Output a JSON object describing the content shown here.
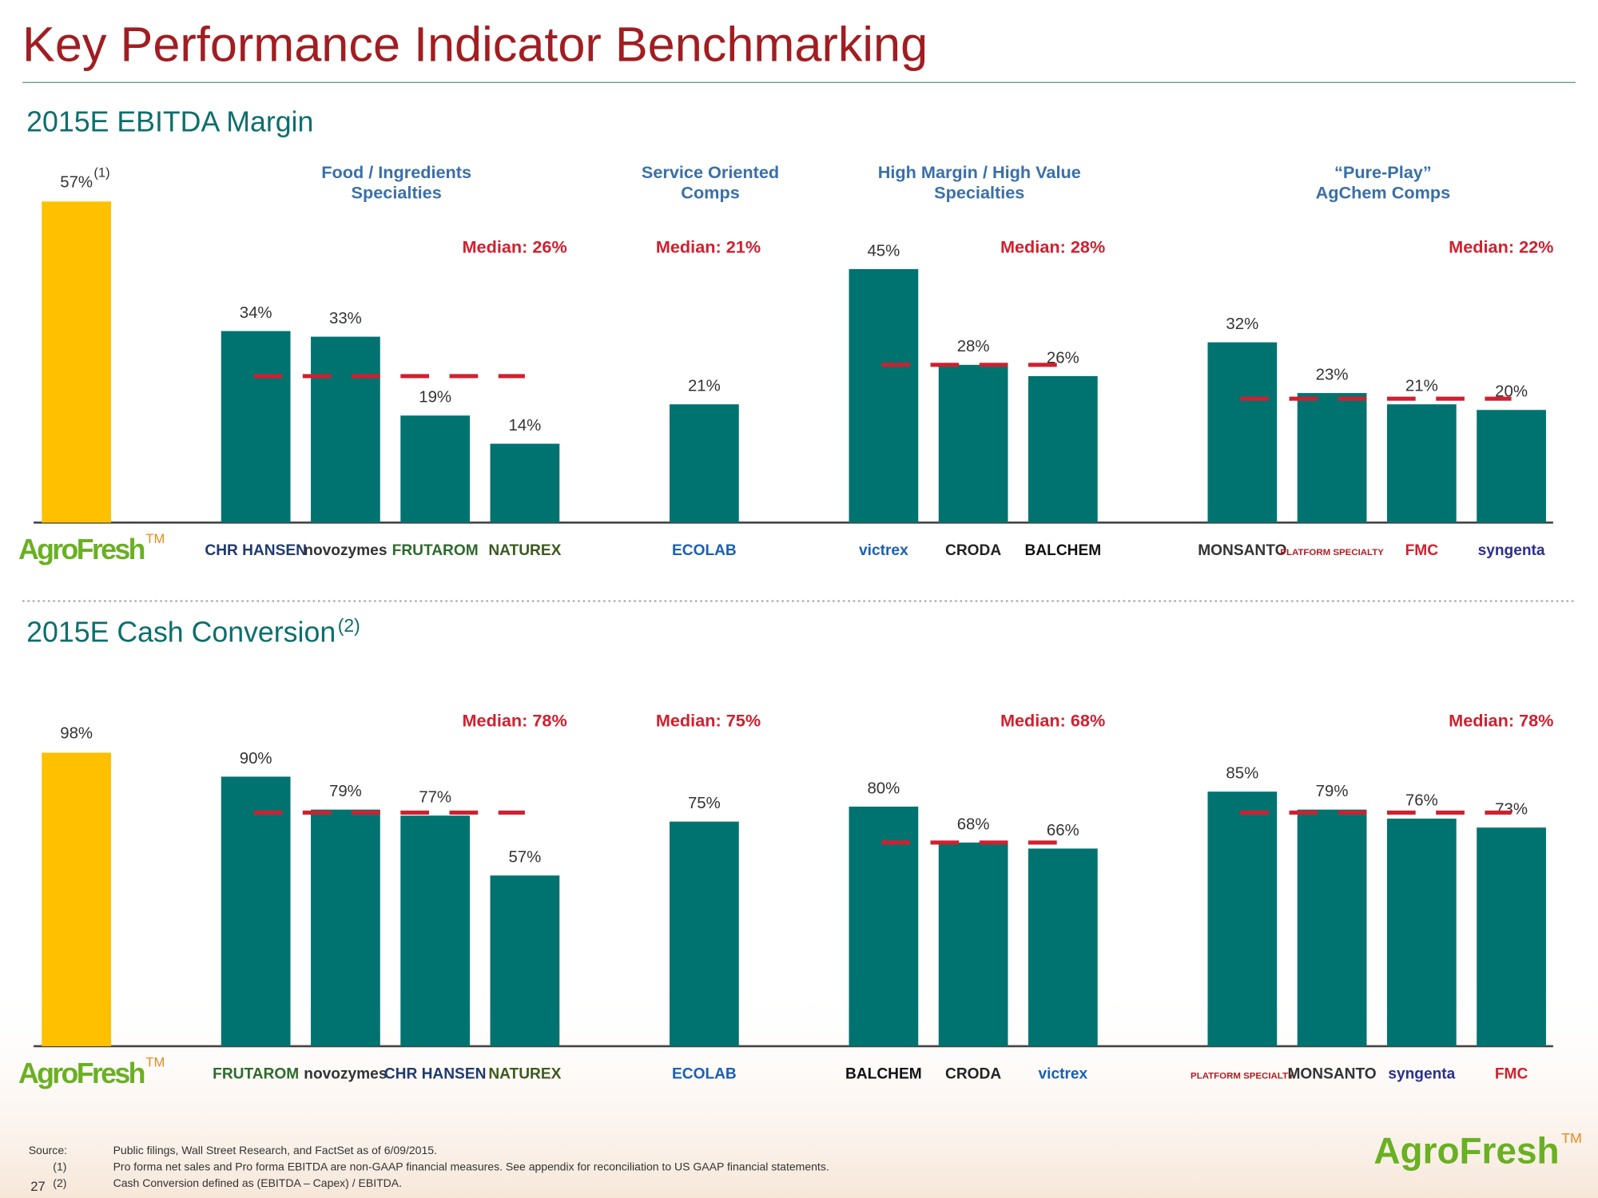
{
  "header": {
    "title": "Key Performance Indicator Benchmarking"
  },
  "chart_data": [
    {
      "type": "bar",
      "title": "2015E EBITDA Margin",
      "color": "#007370",
      "median_color": "#d0202f",
      "subject": {
        "category": "AgroFresh",
        "category_note": "TM",
        "value": 57,
        "value_label": "57%",
        "value_note": "(1)",
        "color": "#ffc000"
      },
      "groups": [
        {
          "title": [
            "Food / Ingredients",
            "Specialties"
          ],
          "categories": [
            "CHR HANSEN",
            "novozymes",
            "FRUTAROM",
            "NATUREX"
          ],
          "category_colors": [
            "#1f3a6e",
            "#333333",
            "#2d6b2d",
            "#3c5a1e"
          ],
          "values": [
            34,
            33,
            19,
            14
          ],
          "value_labels": [
            "34%",
            "33%",
            "19%",
            "14%"
          ],
          "median": 26,
          "median_label": "Median: 26%"
        },
        {
          "title": [
            "Service Oriented",
            "Comps"
          ],
          "categories": [
            "ECOLAB"
          ],
          "category_colors": [
            "#1a5fb4"
          ],
          "values": [
            21
          ],
          "value_labels": [
            "21%"
          ],
          "median": 21,
          "median_label": "Median: 21%"
        },
        {
          "title": [
            "High Margin / High Value",
            "Specialties"
          ],
          "categories": [
            "victrex",
            "CRODA",
            "BALCHEM"
          ],
          "category_colors": [
            "#1a5fb4",
            "#222222",
            "#111111"
          ],
          "values": [
            45,
            28,
            26
          ],
          "value_labels": [
            "45%",
            "28%",
            "26%"
          ],
          "median": 28,
          "median_label": "Median: 28%"
        },
        {
          "title": [
            "“Pure-Play”",
            "AgChem Comps"
          ],
          "categories": [
            "MONSANTO",
            "PLATFORM SPECIALTY",
            "FMC",
            "syngenta"
          ],
          "category_colors": [
            "#333333",
            "#b01c22",
            "#d0202f",
            "#2b2f8f"
          ],
          "values": [
            32,
            23,
            21,
            20
          ],
          "value_labels": [
            "32%",
            "23%",
            "21%",
            "20%"
          ],
          "median": 22,
          "median_label": "Median: 22%"
        }
      ]
    },
    {
      "type": "bar",
      "title": "2015E Cash Conversion",
      "title_note": "(2)",
      "color": "#007370",
      "median_color": "#d0202f",
      "subject": {
        "category": "AgroFresh",
        "category_note": "TM",
        "value": 98,
        "value_label": "98%",
        "color": "#ffc000"
      },
      "groups": [
        {
          "categories": [
            "FRUTAROM",
            "novozymes",
            "CHR HANSEN",
            "NATUREX"
          ],
          "category_colors": [
            "#2d6b2d",
            "#333333",
            "#1f3a6e",
            "#3c5a1e"
          ],
          "values": [
            90,
            79,
            77,
            57
          ],
          "value_labels": [
            "90%",
            "79%",
            "77%",
            "57%"
          ],
          "median": 78,
          "median_label": "Median: 78%"
        },
        {
          "categories": [
            "ECOLAB"
          ],
          "category_colors": [
            "#1a5fb4"
          ],
          "values": [
            75
          ],
          "value_labels": [
            "75%"
          ],
          "median": 75,
          "median_label": "Median: 75%"
        },
        {
          "categories": [
            "BALCHEM",
            "CRODA",
            "victrex"
          ],
          "category_colors": [
            "#111111",
            "#222222",
            "#1a5fb4"
          ],
          "values": [
            80,
            68,
            66
          ],
          "value_labels": [
            "80%",
            "68%",
            "66%"
          ],
          "median": 68,
          "median_label": "Median: 68%"
        },
        {
          "categories": [
            "PLATFORM SPECIALTY",
            "MONSANTO",
            "syngenta",
            "FMC"
          ],
          "category_colors": [
            "#b01c22",
            "#333333",
            "#2b2f8f",
            "#d0202f"
          ],
          "values": [
            85,
            79,
            76,
            73
          ],
          "value_labels": [
            "85%",
            "79%",
            "76%",
            "73%"
          ],
          "median": 78,
          "median_label": "Median: 78%"
        }
      ]
    }
  ],
  "footer": {
    "notes": [
      [
        "Source:",
        "Public filings, Wall Street Research, and FactSet as of 6/09/2015."
      ],
      [
        "(1)",
        "Pro forma net sales and Pro forma EBITDA are non-GAAP financial measures. See appendix for reconciliation to US GAAP financial statements."
      ],
      [
        "(2)",
        "Cash Conversion defined as (EBITDA – Capex) / EBITDA."
      ]
    ],
    "page_number": "27",
    "logo": "AgroFresh",
    "logo_note": "TM"
  }
}
